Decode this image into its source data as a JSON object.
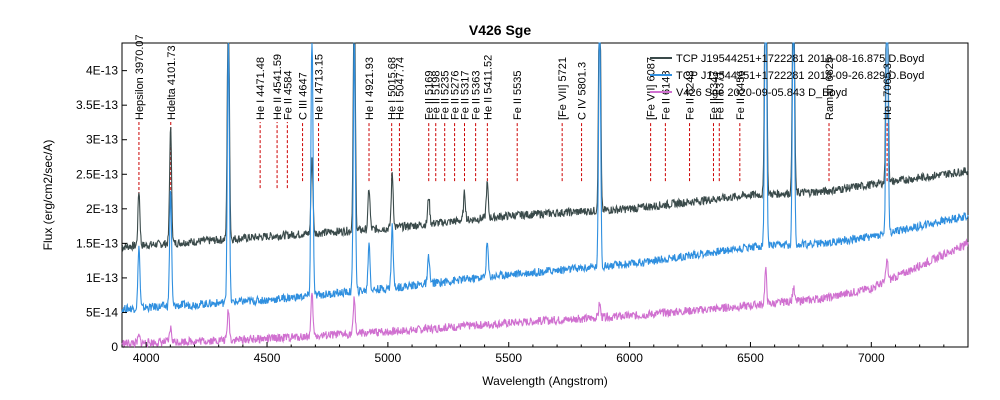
{
  "chart_data": {
    "type": "line",
    "title": "V426 Sge",
    "xlabel": "Wavelength (Angstrom)",
    "ylabel": "Flux (erg/cm2/sec/A)",
    "xlim": [
      3900,
      7400
    ],
    "ylim": [
      0,
      4.4e-13
    ],
    "x_ticks": [
      4000,
      4500,
      5000,
      5500,
      6000,
      6500,
      7000
    ],
    "y_ticks": [
      {
        "value": 0,
        "label": "0"
      },
      {
        "value": 5e-14,
        "label": "5E-14"
      },
      {
        "value": 1e-13,
        "label": "1E-13"
      },
      {
        "value": 1.5e-13,
        "label": "1.5E-13"
      },
      {
        "value": 2e-13,
        "label": "2E-13"
      },
      {
        "value": 2.5e-13,
        "label": "2.5E-13"
      },
      {
        "value": 3e-13,
        "label": "3E-13"
      },
      {
        "value": 3.5e-13,
        "label": "3.5E-13"
      },
      {
        "value": 4e-13,
        "label": "4E-13"
      }
    ],
    "grid": false,
    "legend_position": "top-right",
    "colors": {
      "line_1": "#3a4a4a",
      "line_2": "#2f8fdf",
      "line_3": "#d070d0",
      "annotation": "#cc0000"
    },
    "series": [
      {
        "name": "TCP J19544251+1722281 2018-08-16.875 D.Boyd",
        "color": "#3a4a4a",
        "continuum": [
          [
            3900,
            1.45e-13
          ],
          [
            4500,
            1.6e-13
          ],
          [
            5000,
            1.72e-13
          ],
          [
            5500,
            1.9e-13
          ],
          [
            6000,
            2e-13
          ],
          [
            6500,
            2.2e-13
          ],
          [
            6800,
            2.25e-13
          ],
          [
            7000,
            2.35e-13
          ],
          [
            7400,
            2.55e-13
          ]
        ],
        "peaks": [
          [
            3970,
            8e-14
          ],
          [
            4101,
            1.7e-13
          ],
          [
            4340,
            3.9e-13
          ],
          [
            4686,
            1.1e-13
          ],
          [
            4861,
            3.7e-13
          ],
          [
            4922,
            6e-14
          ],
          [
            5018,
            8e-14
          ],
          [
            5169,
            4e-14
          ],
          [
            5317,
            4e-14
          ],
          [
            5411,
            5e-14
          ],
          [
            5876,
            3.8e-13
          ],
          [
            6563,
            4.8e-13
          ],
          [
            6678,
            4.2e-13
          ],
          [
            7065,
            4.3e-13
          ]
        ]
      },
      {
        "name": "TCP J19544251+1722281 2018-09-26.829 D.Boyd",
        "color": "#2f8fdf",
        "continuum": [
          [
            3900,
            5.5e-14
          ],
          [
            4500,
            6.8e-14
          ],
          [
            5000,
            8.5e-14
          ],
          [
            5500,
            1.05e-13
          ],
          [
            6000,
            1.2e-13
          ],
          [
            6500,
            1.45e-13
          ],
          [
            6800,
            1.5e-13
          ],
          [
            7000,
            1.6e-13
          ],
          [
            7400,
            1.9e-13
          ]
        ],
        "peaks": [
          [
            3970,
            9e-14
          ],
          [
            4101,
            1.7e-13
          ],
          [
            4340,
            3.9e-13
          ],
          [
            4686,
            3.9e-13
          ],
          [
            4861,
            3.7e-13
          ],
          [
            4922,
            7e-14
          ],
          [
            5018,
            9e-14
          ],
          [
            5169,
            4e-14
          ],
          [
            5411,
            5e-14
          ],
          [
            5876,
            3.8e-13
          ],
          [
            6563,
            4.8e-13
          ],
          [
            6678,
            4.2e-13
          ],
          [
            7065,
            4.3e-13
          ]
        ]
      },
      {
        "name": "V426 Sge 2020-09-05.843 D_Boyd",
        "color": "#d070d0",
        "continuum": [
          [
            3900,
            5e-15
          ],
          [
            4500,
            1.2e-14
          ],
          [
            5000,
            2.2e-14
          ],
          [
            5500,
            3.5e-14
          ],
          [
            6000,
            4.5e-14
          ],
          [
            6500,
            6e-14
          ],
          [
            6800,
            7e-14
          ],
          [
            7000,
            8.5e-14
          ],
          [
            7400,
            1.5e-13
          ]
        ],
        "peaks": [
          [
            3970,
            1e-14
          ],
          [
            4101,
            2e-14
          ],
          [
            4340,
            4.5e-14
          ],
          [
            4686,
            6e-14
          ],
          [
            4861,
            5e-14
          ],
          [
            5876,
            2e-14
          ],
          [
            6563,
            5e-14
          ],
          [
            6678,
            2e-14
          ],
          [
            7065,
            3e-14
          ]
        ]
      }
    ],
    "annotations": [
      {
        "label": "Hepsilon 3970.07",
        "x": 3970.07,
        "y_line": 2.2e-13
      },
      {
        "label": "Hdelta 4101.73",
        "x": 4101.73,
        "y_line": 2.2e-13
      },
      {
        "label": "He I 4471.48",
        "x": 4471.48,
        "y_line": 2.3e-13
      },
      {
        "label": "He II 4541.59",
        "x": 4541.59,
        "y_line": 2.3e-13
      },
      {
        "label": "Fe II 4584",
        "x": 4584,
        "y_line": 2.3e-13
      },
      {
        "label": "C III 4647",
        "x": 4647,
        "y_line": 2.4e-13
      },
      {
        "label": "He II 4713.15",
        "x": 4713.15,
        "y_line": 2.4e-13
      },
      {
        "label": "He I 4921.93",
        "x": 4921.93,
        "y_line": 2.4e-13
      },
      {
        "label": "He I 5015.68",
        "x": 5015.68,
        "y_line": 2.4e-13
      },
      {
        "label": "He I 5047.74",
        "x": 5047.74,
        "y_line": 2.4e-13
      },
      {
        "label": "Fe II 5169",
        "x": 5169,
        "y_line": 2.4e-13
      },
      {
        "label": "Fe II 5198",
        "x": 5198,
        "y_line": 2.4e-13
      },
      {
        "label": "Fe II 5235",
        "x": 5235,
        "y_line": 2.4e-13
      },
      {
        "label": "Fe II 5276",
        "x": 5276,
        "y_line": 2.4e-13
      },
      {
        "label": "Fe II 5317",
        "x": 5317,
        "y_line": 2.4e-13
      },
      {
        "label": "Fe II 5363",
        "x": 5363,
        "y_line": 2.4e-13
      },
      {
        "label": "He II 5411.52",
        "x": 5411.52,
        "y_line": 2.4e-13
      },
      {
        "label": "Fe II 5535",
        "x": 5535,
        "y_line": 2.4e-13
      },
      {
        "label": "[Fe VII] 5721",
        "x": 5721,
        "y_line": 2.4e-13
      },
      {
        "label": "C IV 5801.3",
        "x": 5801.3,
        "y_line": 2.4e-13
      },
      {
        "label": "[Fe VII] 6087",
        "x": 6087,
        "y_line": 2.4e-13
      },
      {
        "label": "Fe II 6148",
        "x": 6148,
        "y_line": 2.4e-13
      },
      {
        "label": "Fe II 6248",
        "x": 6248,
        "y_line": 2.4e-13
      },
      {
        "label": "Fe II 6347",
        "x": 6347,
        "y_line": 2.4e-13
      },
      {
        "label": "Fe II 6371",
        "x": 6371,
        "y_line": 2.4e-13
      },
      {
        "label": "Fe II 6456",
        "x": 6456,
        "y_line": 2.4e-13
      },
      {
        "label": "Raman 6825",
        "x": 6825,
        "y_line": 2.4e-13
      },
      {
        "label": "He I 7065.3",
        "x": 7065.3,
        "y_line": 2.4e-13
      }
    ]
  }
}
